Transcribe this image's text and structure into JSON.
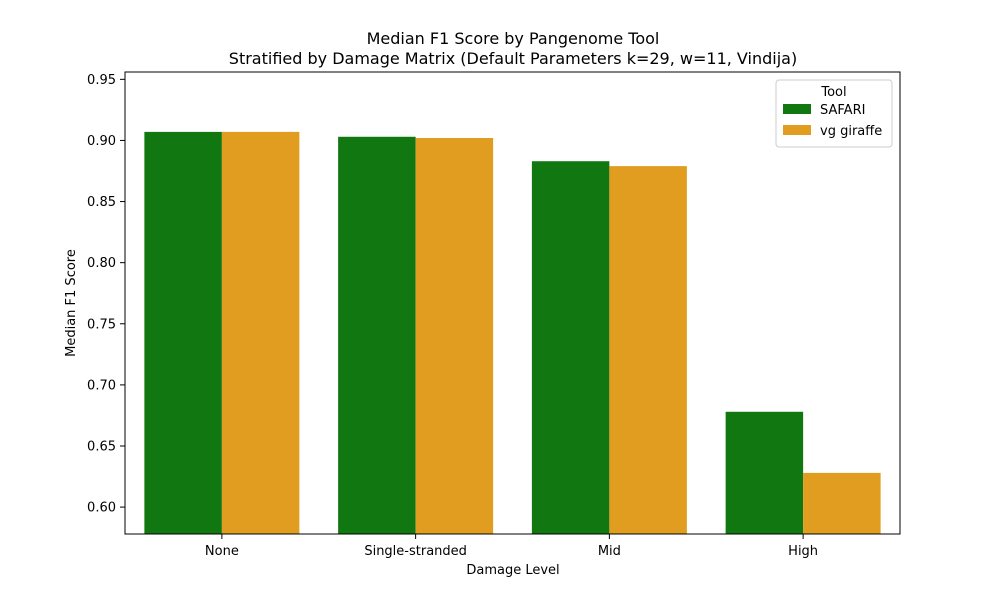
{
  "chart_data": {
    "type": "bar",
    "title": "Median F1 Score by Pangenome Tool",
    "subtitle": "Stratified by Damage Matrix (Default Parameters k=29, w=11, Vindija)",
    "xlabel": "Damage Level",
    "ylabel": "Median F1 Score",
    "categories": [
      "None",
      "Single-stranded",
      "Mid",
      "High"
    ],
    "series": [
      {
        "name": "SAFARI",
        "color": "#117711",
        "values": [
          0.907,
          0.903,
          0.883,
          0.678
        ]
      },
      {
        "name": "vg giraffe",
        "color": "#e19d20",
        "values": [
          0.907,
          0.902,
          0.879,
          0.628
        ]
      }
    ],
    "ylim": [
      0.578,
      0.956
    ],
    "yticks": [
      "0.60",
      "0.65",
      "0.70",
      "0.75",
      "0.80",
      "0.85",
      "0.90",
      "0.95"
    ],
    "grid": false,
    "legend": {
      "title": "Tool",
      "placement": "top-right"
    }
  }
}
